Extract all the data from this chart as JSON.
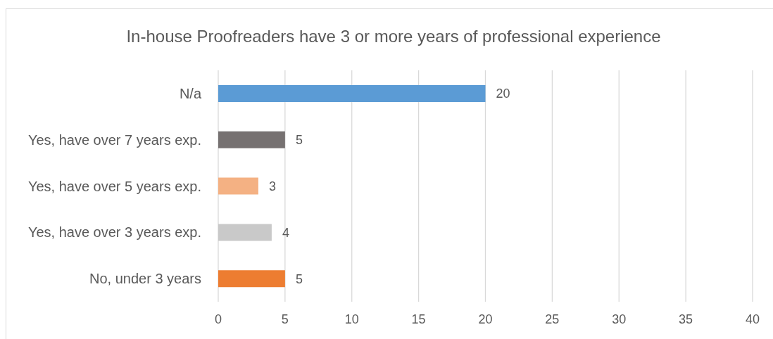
{
  "chart_data": {
    "type": "bar",
    "orientation": "horizontal",
    "title": "In-house Proofreaders have 3 or more years of professional experience",
    "categories": [
      "N/a",
      "Yes, have over 7 years exp.",
      "Yes, have over 5 years exp.",
      "Yes, have over 3 years exp.",
      "No, under 3 years"
    ],
    "values": [
      20,
      5,
      3,
      4,
      5
    ],
    "colors": [
      "#5b9bd5",
      "#767171",
      "#f4b183",
      "#c9c9c9",
      "#ed7d31"
    ],
    "xlim": [
      0,
      40
    ],
    "xticks": [
      0,
      5,
      10,
      15,
      20,
      25,
      30,
      35,
      40
    ],
    "grid": "x",
    "data_labels": true
  }
}
